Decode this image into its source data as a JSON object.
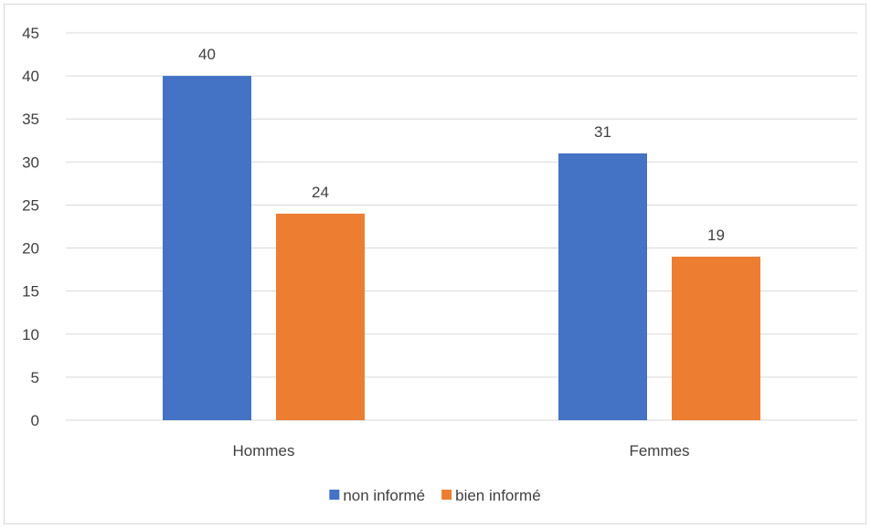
{
  "chart_data": {
    "type": "bar",
    "categories": [
      "Hommes",
      "Femmes"
    ],
    "series": [
      {
        "name": "non informé",
        "values": [
          40,
          31
        ],
        "color": "#4472C4"
      },
      {
        "name": "bien informé",
        "values": [
          24,
          19
        ],
        "color": "#ED7D31"
      }
    ],
    "ylim": [
      0,
      45
    ],
    "yticks": [
      0,
      5,
      10,
      15,
      20,
      25,
      30,
      35,
      40,
      45
    ],
    "grid": true,
    "legend_position": "bottom",
    "data_labels": true,
    "gridline_color": "#d9d9d9"
  }
}
